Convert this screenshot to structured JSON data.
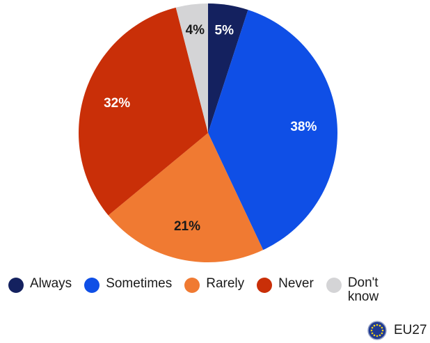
{
  "chart_data": {
    "type": "pie",
    "categories": [
      "Always",
      "Sometimes",
      "Rarely",
      "Never",
      "Don't know"
    ],
    "values": [
      5,
      38,
      21,
      32,
      4
    ],
    "value_labels": [
      "5%",
      "38%",
      "21%",
      "32%",
      "4%"
    ],
    "unit": "%",
    "colors": [
      "#14215f",
      "#0f4fe6",
      "#f07a32",
      "#c92f08",
      "#d4d4d6"
    ],
    "label_colors": [
      "#ffffff",
      "#ffffff",
      "#1a1a1a",
      "#ffffff",
      "#1a1a1a"
    ],
    "start_angle": "12 o'clock",
    "direction": "clockwise",
    "legend_position": "bottom"
  },
  "legend": {
    "items": [
      {
        "label": "Always",
        "color": "#14215f"
      },
      {
        "label": "Sometimes",
        "color": "#0f4fe6"
      },
      {
        "label": "Rarely",
        "color": "#f07a32"
      },
      {
        "label": "Never",
        "color": "#c92f08"
      },
      {
        "label": "Don't know",
        "color": "#d4d4d6"
      }
    ]
  },
  "region": {
    "label": "EU27",
    "icon": "eu-flag-icon",
    "flag_color": "#1f3a93",
    "star_color": "#f2d21a"
  }
}
